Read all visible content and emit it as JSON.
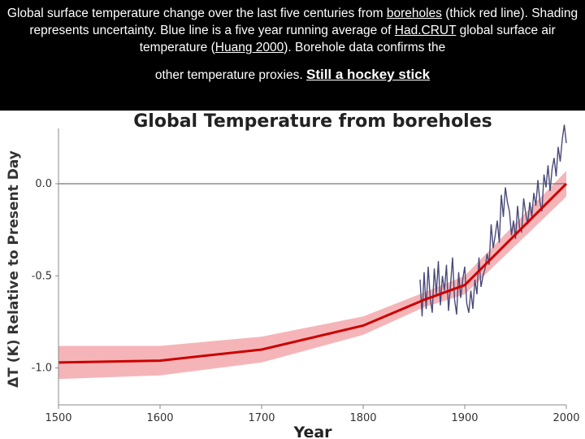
{
  "caption": {
    "p1": "Global surface temperature change over the last five centuries from ",
    "link1": "boreholes",
    "p2": " (thick red line). Shading represents uncertainty. Blue line is a five year running average of ",
    "link2": "Had.CRUT",
    "p3": " global surface air temperature (",
    "link3": "Huang 2000",
    "p4": "). Borehole data confirms the",
    "line4": "other temperature proxies.",
    "emphasis": "Still a hockey stick"
  },
  "chart_data": {
    "type": "line",
    "title": "Global Temperature from boreholes",
    "xlabel": "Year",
    "ylabel": "ΔT (K) Relative to Present Day",
    "xlim": [
      1500,
      2000
    ],
    "ylim": [
      -1.2,
      0.3
    ],
    "x_ticks": [
      "1500",
      "1600",
      "1700",
      "1800",
      "1900",
      "2000"
    ],
    "y_ticks": [
      "0.0",
      "-0.5",
      "-1.0"
    ],
    "reference_line": 0.0,
    "colors": {
      "borehole": "#cc0000",
      "uncertainty": "#f5b5b8",
      "hadcrut": "#4a4a7a"
    },
    "series": [
      {
        "style": "thick-red",
        "x": [
          1500,
          1600,
          1700,
          1800,
          1860,
          1900,
          2000
        ],
        "y": [
          -0.97,
          -0.96,
          -0.9,
          -0.77,
          -0.63,
          -0.55,
          0.0
        ],
        "band": [
          0.09,
          0.08,
          0.07,
          0.05,
          0.04,
          0.05,
          0.07
        ]
      },
      {
        "style": "thin-blue",
        "x": [
          1856,
          1858,
          1860,
          1862,
          1864,
          1866,
          1868,
          1870,
          1872,
          1874,
          1876,
          1878,
          1880,
          1882,
          1884,
          1886,
          1888,
          1890,
          1892,
          1894,
          1896,
          1898,
          1900,
          1902,
          1904,
          1906,
          1908,
          1910,
          1912,
          1914,
          1916,
          1918,
          1920,
          1922,
          1924,
          1926,
          1928,
          1930,
          1932,
          1934,
          1936,
          1938,
          1940,
          1942,
          1944,
          1946,
          1948,
          1950,
          1952,
          1954,
          1956,
          1958,
          1960,
          1962,
          1964,
          1966,
          1968,
          1970,
          1972,
          1974,
          1976,
          1978,
          1980,
          1982,
          1984,
          1986,
          1988,
          1990,
          1992,
          1994,
          1996,
          1998,
          2000
        ],
        "y": [
          -0.52,
          -0.72,
          -0.48,
          -0.68,
          -0.45,
          -0.62,
          -0.7,
          -0.46,
          -0.6,
          -0.42,
          -0.66,
          -0.5,
          -0.58,
          -0.44,
          -0.69,
          -0.55,
          -0.4,
          -0.63,
          -0.71,
          -0.48,
          -0.62,
          -0.52,
          -0.45,
          -0.65,
          -0.7,
          -0.58,
          -0.68,
          -0.52,
          -0.6,
          -0.4,
          -0.56,
          -0.5,
          -0.46,
          -0.38,
          -0.44,
          -0.22,
          -0.35,
          -0.28,
          -0.2,
          -0.32,
          -0.06,
          -0.18,
          -0.02,
          -0.1,
          -0.15,
          -0.28,
          -0.2,
          -0.3,
          -0.12,
          -0.24,
          -0.26,
          -0.08,
          -0.16,
          -0.22,
          -0.1,
          -0.18,
          -0.05,
          -0.12,
          0.02,
          -0.1,
          -0.15,
          0.05,
          -0.02,
          0.1,
          -0.04,
          0.08,
          0.14,
          0.04,
          0.2,
          0.12,
          0.24,
          0.32,
          0.22
        ]
      }
    ]
  }
}
